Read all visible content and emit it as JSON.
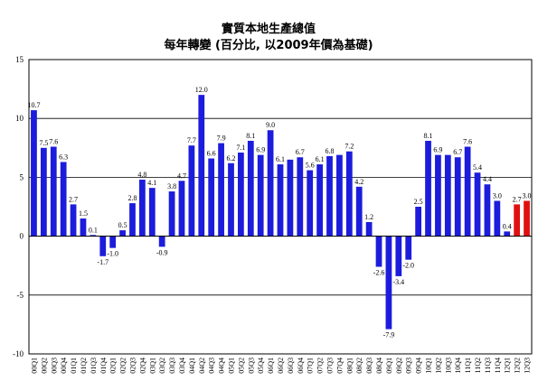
{
  "chart_data": {
    "type": "bar",
    "title": "實質本地生產總值",
    "subtitle": "每年轉變 (百分比, 以2009年價為基礎)",
    "xlabel": "",
    "ylabel": "",
    "ylim": [
      -10,
      15
    ],
    "yticks": [
      -10,
      -5,
      0,
      5,
      10,
      15
    ],
    "grid": true,
    "categories": [
      "00Q1",
      "00Q2",
      "00Q3",
      "00Q4",
      "01Q1",
      "01Q2",
      "01Q3",
      "01Q4",
      "02Q1",
      "02Q2",
      "02Q3",
      "02Q4",
      "03Q1",
      "03Q2",
      "03Q3",
      "03Q4",
      "04Q1",
      "04Q2",
      "04Q3",
      "04Q4",
      "05Q1",
      "05Q2",
      "05Q3",
      "05Q4",
      "06Q1",
      "06Q2",
      "06Q3",
      "06Q4",
      "07Q1",
      "07Q2",
      "07Q3",
      "07Q4",
      "08Q1",
      "08Q2",
      "08Q3",
      "08Q4",
      "09Q1",
      "09Q2",
      "09Q3",
      "09Q4",
      "10Q1",
      "10Q2",
      "10Q3",
      "10Q4",
      "11Q1",
      "11Q2",
      "11Q3",
      "11Q4",
      "12Q1",
      "12Q2",
      "12Q3"
    ],
    "values": [
      10.7,
      7.5,
      7.6,
      6.3,
      2.7,
      1.5,
      0.1,
      -1.7,
      -1.0,
      0.5,
      2.8,
      4.8,
      4.1,
      -0.9,
      3.8,
      4.7,
      7.7,
      12.0,
      6.6,
      7.9,
      6.2,
      7.1,
      8.1,
      6.9,
      9.0,
      6.1,
      6.5,
      6.7,
      5.6,
      6.1,
      6.8,
      6.9,
      7.2,
      4.2,
      1.2,
      -2.6,
      -7.9,
      -3.4,
      -2.0,
      2.5,
      8.1,
      6.9,
      6.9,
      6.7,
      7.6,
      5.4,
      4.4,
      3.0,
      0.4,
      2.7,
      3.0
    ],
    "labels": [
      "10.7",
      "7.5",
      "7.6",
      "6.3",
      "2.7",
      "1.5",
      "0.1",
      "-1.7",
      "-1.0",
      "0.5",
      "2.8",
      "4.8",
      "4.1",
      "-0.9",
      "3.8",
      "4.7",
      "7.7",
      "12.0",
      "6.6",
      "7.9",
      "6.2",
      "7.1",
      "8.1",
      "6.9",
      "9.0",
      "6.1",
      "",
      "6.7",
      "5.6",
      "6.1",
      "6.8",
      "",
      "7.2",
      "4.2",
      "1.2",
      "-2.6",
      "-7.9",
      "-3.4",
      "-2.0",
      "2.5",
      "8.1",
      "6.9",
      "",
      "6.7",
      "7.6",
      "5.4",
      "4.4",
      "3.0",
      "0.4",
      "2.7",
      "3.0"
    ],
    "bar_colors": {
      "default": "#1c1cdc",
      "highlight": "#e01010",
      "highlight_categories": [
        "12Q2",
        "12Q3"
      ]
    }
  }
}
